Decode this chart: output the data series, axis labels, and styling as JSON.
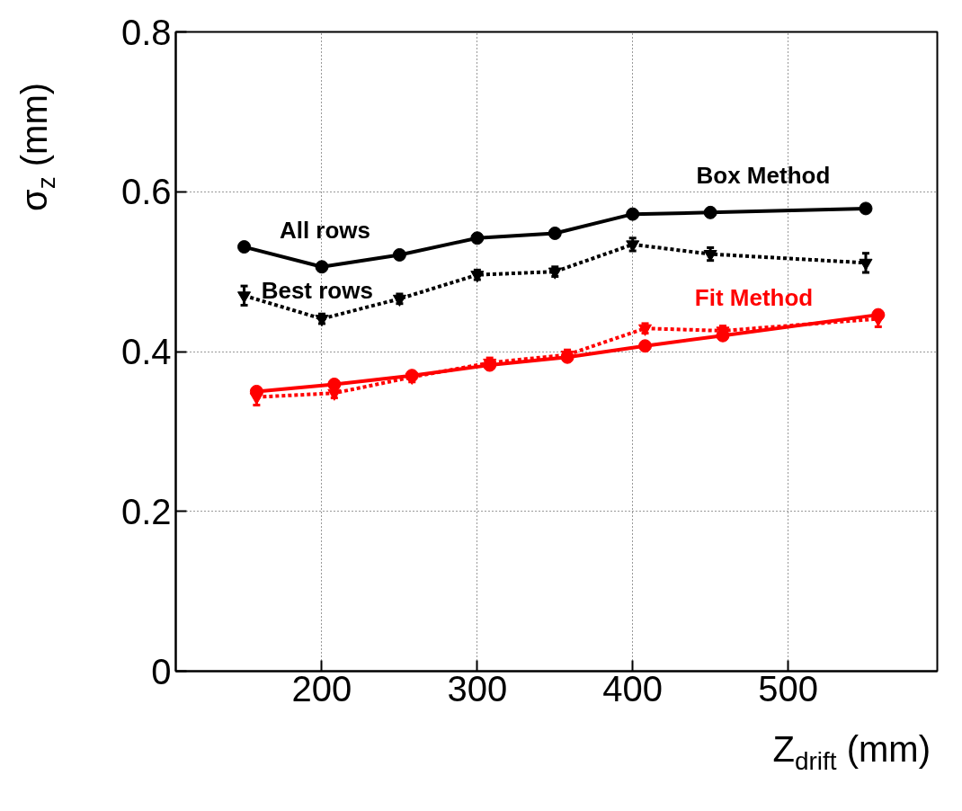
{
  "chart_data": {
    "type": "line",
    "xlabel": "Z$_{drift}$ (mm)",
    "ylabel": "σ$_{z}$ (mm)",
    "xlim": [
      106,
      596
    ],
    "ylim": [
      0,
      0.8
    ],
    "xticks": [
      200,
      300,
      400,
      500
    ],
    "yticks": [
      0,
      0.2,
      0.4,
      0.6,
      0.8
    ],
    "grid": true,
    "series": [
      {
        "color": "#000000",
        "marker": "circle",
        "line_style": "solid",
        "x": [
          150,
          200,
          250,
          300,
          350,
          400,
          450,
          550
        ],
        "values": [
          0.531,
          0.506,
          0.521,
          0.542,
          0.548,
          0.572,
          0.574,
          0.579
        ]
      },
      {
        "color": "#000000",
        "marker": "triangle",
        "line_style": "dashed",
        "x": [
          150,
          200,
          250,
          300,
          350,
          400,
          450,
          550
        ],
        "values": [
          0.47,
          0.441,
          0.466,
          0.496,
          0.5,
          0.534,
          0.522,
          0.511
        ],
        "errors": [
          0.012,
          0.006,
          0.006,
          0.006,
          0.006,
          0.008,
          0.008,
          0.012
        ]
      },
      {
        "color": "#ff0000",
        "marker": "circle",
        "line_style": "solid",
        "x": [
          158,
          208,
          258,
          308,
          358,
          408,
          458,
          558
        ],
        "values": [
          0.35,
          0.359,
          0.37,
          0.383,
          0.393,
          0.407,
          0.42,
          0.446
        ]
      },
      {
        "color": "#ff0000",
        "marker": "triangle",
        "line_style": "dashed",
        "x": [
          158,
          208,
          258,
          308,
          358,
          408,
          458,
          558
        ],
        "values": [
          0.343,
          0.348,
          0.368,
          0.386,
          0.396,
          0.429,
          0.426,
          0.441
        ],
        "errors": [
          0.01,
          0.006,
          0.006,
          0.006,
          0.006,
          0.006,
          0.006,
          0.01
        ]
      }
    ],
    "annotations": [
      "All rows",
      "Best rows",
      "Box Method",
      "Fit Method"
    ]
  }
}
